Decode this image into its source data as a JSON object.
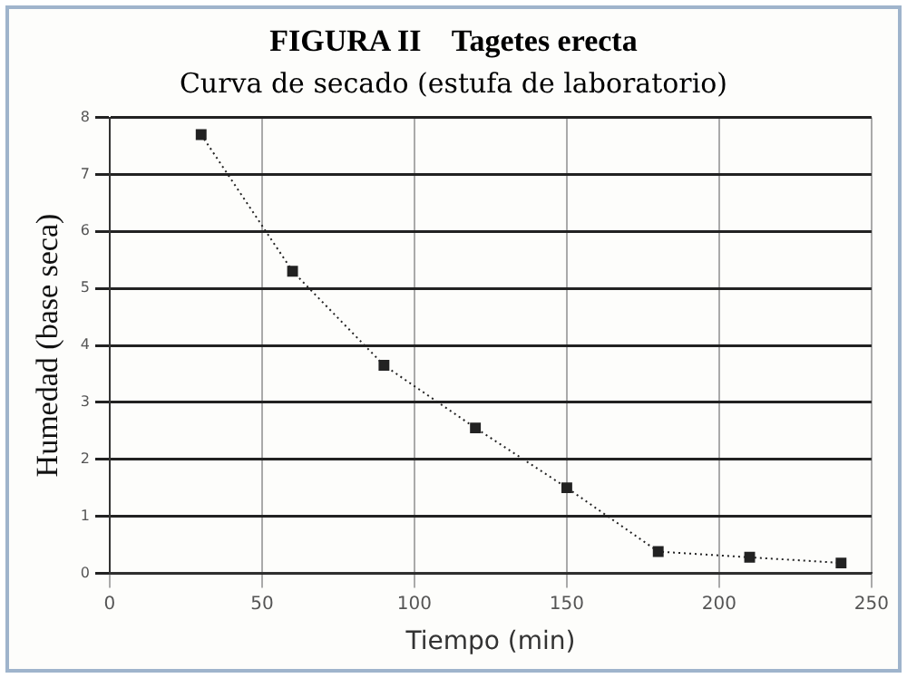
{
  "chart_data": {
    "type": "line",
    "title": "FIGURA II    Tagetes erecta",
    "subtitle": "Curva de secado (estufa de laboratorio)",
    "xlabel": "Tiempo (min)",
    "ylabel": "Humedad (base seca)",
    "x": [
      30,
      60,
      90,
      120,
      150,
      180,
      210,
      240
    ],
    "series": [
      {
        "color": "#222222",
        "values": [
          7.7,
          5.3,
          3.65,
          2.55,
          1.5,
          0.38,
          0.28,
          0.18
        ]
      }
    ],
    "xlim": [
      0,
      250
    ],
    "xticks": [
      0,
      50,
      100,
      150,
      200,
      250
    ],
    "ylim": [
      0,
      8
    ],
    "yticks": [
      0,
      1,
      2,
      3,
      4,
      5,
      6,
      7,
      8
    ],
    "grid": true,
    "legend": false,
    "marker": "square",
    "line_style": "dotted"
  }
}
